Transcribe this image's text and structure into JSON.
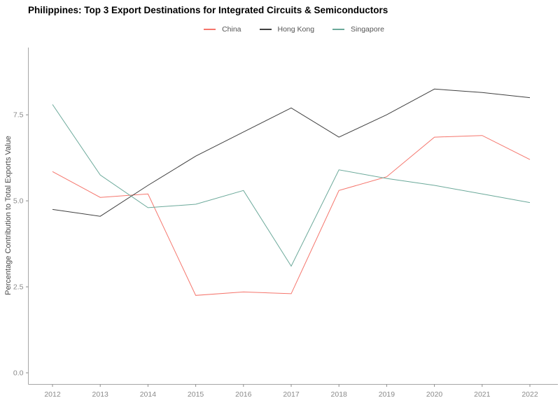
{
  "title": "Philippines: Top 3 Export Destinations for Integrated Circuits & Semiconductors",
  "colors": {
    "china": "#f5756c",
    "hong_kong": "#404040",
    "singapore": "#6ba99a",
    "axis_line": "#a6a6a6",
    "tick_mark": "#8c8c8c",
    "tick_label": "#8a8a8a",
    "axis_title": "#4a4a4a",
    "legend_label": "#555555",
    "title_color": "#000000"
  },
  "legend": {
    "items": [
      {
        "label": "China",
        "color_key": "china"
      },
      {
        "label": "Hong Kong",
        "color_key": "hong_kong"
      },
      {
        "label": "Singapore",
        "color_key": "singapore"
      }
    ]
  },
  "chart_data": {
    "type": "line",
    "title": "Philippines: Top 3 Export Destinations for Integrated Circuits & Semiconductors",
    "xlabel": "",
    "ylabel": "Percentage Contribution to Total Exports Value",
    "x": [
      2012,
      2013,
      2014,
      2015,
      2016,
      2017,
      2018,
      2019,
      2020,
      2021,
      2022
    ],
    "series": [
      {
        "name": "China",
        "color_key": "china",
        "values": [
          5.85,
          5.1,
          5.2,
          2.25,
          2.35,
          2.3,
          5.3,
          5.7,
          6.85,
          6.9,
          6.2
        ]
      },
      {
        "name": "Hong Kong",
        "color_key": "hong_kong",
        "values": [
          4.75,
          4.55,
          5.45,
          6.3,
          7.0,
          7.7,
          6.85,
          7.5,
          8.25,
          8.15,
          8.0
        ]
      },
      {
        "name": "Singapore",
        "color_key": "singapore",
        "values": [
          7.8,
          5.75,
          4.8,
          4.9,
          5.3,
          3.1,
          5.9,
          5.65,
          5.45,
          5.2,
          4.95
        ]
      }
    ],
    "yticks": {
      "values": [
        0.0,
        2.5,
        5.0,
        7.5
      ],
      "labels": [
        "0.0",
        "2.5",
        "5.0",
        "7.5"
      ]
    },
    "xtick_labels": [
      "2012",
      "2013",
      "2014",
      "2015",
      "2016",
      "2017",
      "2018",
      "2019",
      "2020",
      "2021",
      "2022"
    ],
    "ylim": [
      -0.33,
      9.45
    ],
    "grid": false,
    "legend_position": "top-center"
  }
}
